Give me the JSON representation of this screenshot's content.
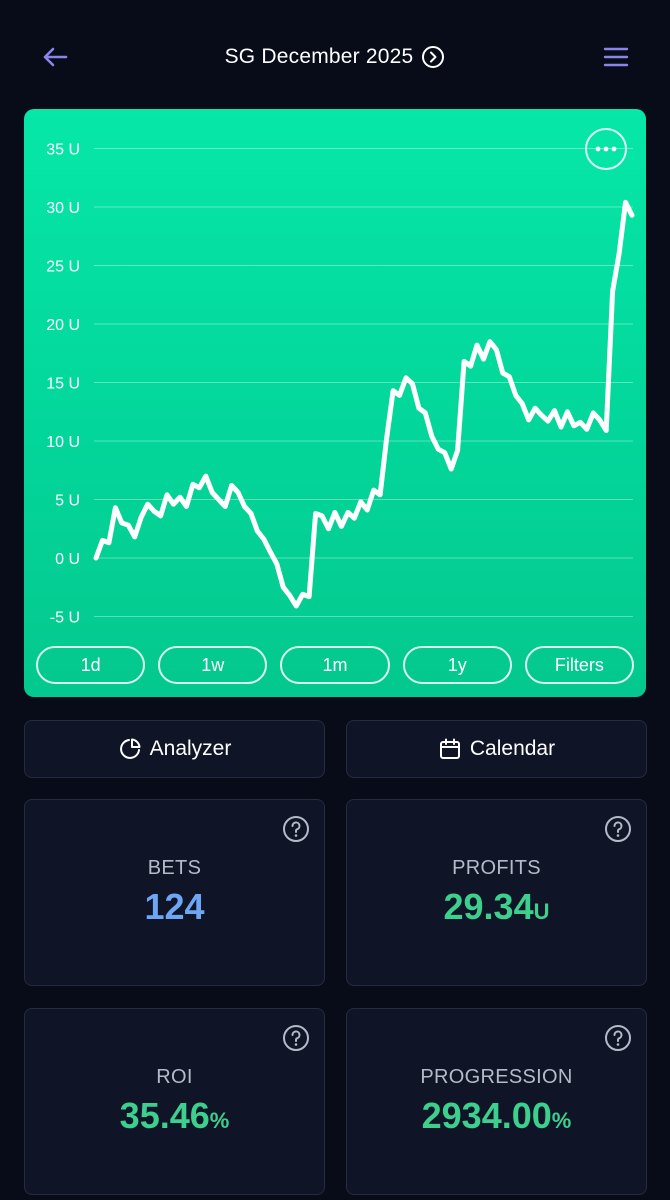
{
  "header": {
    "title": "SG December 2025"
  },
  "chart_data": {
    "type": "line",
    "ylabel_unit": "U",
    "yticks": [
      "35 U",
      "30 U",
      "25 U",
      "20 U",
      "15 U",
      "10 U",
      "5 U",
      "0 U",
      "-5 U"
    ],
    "ytick_values": [
      35,
      30,
      25,
      20,
      15,
      10,
      5,
      0,
      -5
    ],
    "ylim": [
      -5,
      35
    ],
    "grid": true,
    "series": [
      {
        "values": [
          0,
          1.5,
          1.3,
          4.3,
          3.0,
          2.8,
          1.8,
          3.5,
          4.6,
          4.0,
          3.6,
          5.4,
          4.6,
          5.2,
          4.4,
          6.3,
          6.0,
          7.0,
          5.6,
          5.0,
          4.4,
          6.2,
          5.6,
          4.4,
          3.8,
          2.3,
          1.6,
          0.5,
          -0.5,
          -2.5,
          -3.2,
          -4.1,
          -3.1,
          -3.3,
          3.8,
          3.6,
          2.5,
          3.9,
          2.7,
          3.9,
          3.4,
          4.8,
          4.1,
          5.8,
          5.4,
          10.2,
          14.3,
          13.9,
          15.4,
          14.9,
          12.8,
          12.4,
          10.4,
          9.3,
          9.0,
          7.6,
          9.2,
          16.8,
          16.4,
          18.2,
          17.0,
          18.5,
          17.8,
          15.8,
          15.5,
          13.9,
          13.2,
          11.8,
          12.8,
          12.2,
          11.7,
          12.6,
          11.2,
          12.5,
          11.3,
          11.6,
          11.0,
          12.4,
          11.8,
          10.9,
          22.8,
          26.0,
          30.4,
          29.3
        ]
      }
    ]
  },
  "ranges": [
    "1d",
    "1w",
    "1m",
    "1y",
    "Filters"
  ],
  "actions": {
    "analyzer": "Analyzer",
    "calendar": "Calendar"
  },
  "stats": {
    "bets": {
      "label": "BETS",
      "value": "124",
      "unit": "",
      "color": "#6ea6f4"
    },
    "profits": {
      "label": "PROFITS",
      "value": "29.34",
      "unit": "U",
      "color": "#3ccf8e"
    },
    "roi": {
      "label": "ROI",
      "value": "35.46",
      "unit": "%",
      "color": "#3ccf8e"
    },
    "progression": {
      "label": "PROGRESSION",
      "value": "2934.00",
      "unit": "%",
      "color": "#3ccf8e"
    }
  },
  "colors": {
    "accent_purple": "#8a84e8",
    "chart_green": "#06e0a2",
    "background": "#080b18",
    "card": "#0f1526"
  }
}
